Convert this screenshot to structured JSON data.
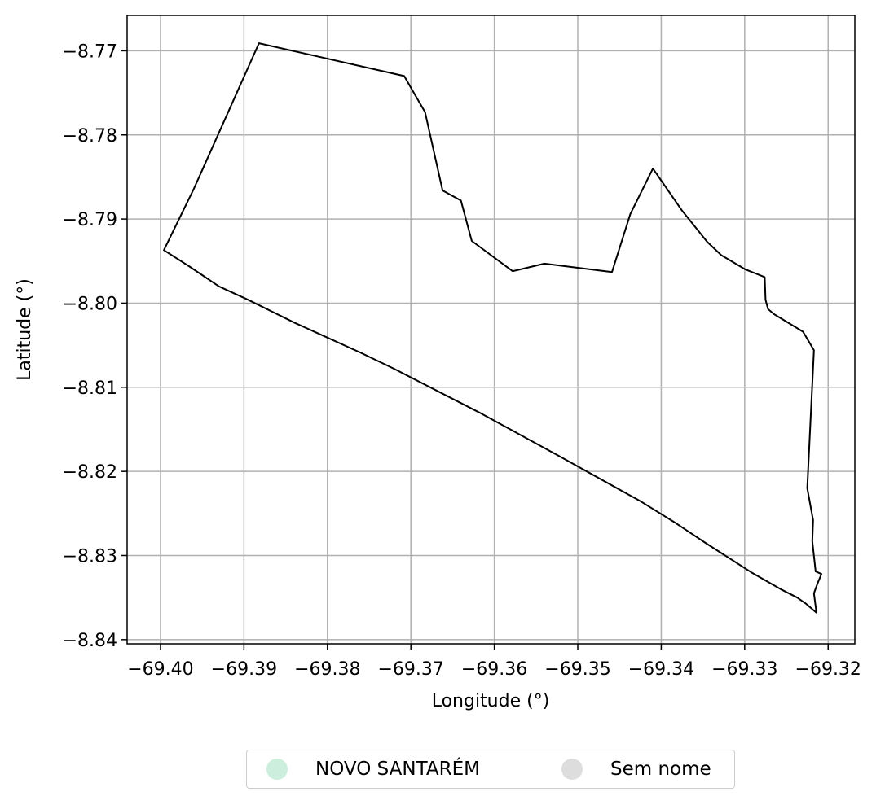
{
  "chart_data": {
    "type": "map",
    "xlabel": "Longitude (°)",
    "ylabel": "Latitude (°)",
    "xlim": [
      -69.404,
      -69.3168
    ],
    "ylim": [
      -8.8405,
      -8.7658
    ],
    "grid": true,
    "x_ticks": [
      {
        "value": -69.4,
        "label": "−69.40"
      },
      {
        "value": -69.39,
        "label": "−69.39"
      },
      {
        "value": -69.38,
        "label": "−69.38"
      },
      {
        "value": -69.37,
        "label": "−69.37"
      },
      {
        "value": -69.36,
        "label": "−69.36"
      },
      {
        "value": -69.35,
        "label": "−69.35"
      },
      {
        "value": -69.34,
        "label": "−69.34"
      },
      {
        "value": -69.33,
        "label": "−69.33"
      },
      {
        "value": -69.32,
        "label": "−69.32"
      }
    ],
    "y_ticks": [
      {
        "value": -8.77,
        "label": "−8.77"
      },
      {
        "value": -8.78,
        "label": "−8.78"
      },
      {
        "value": -8.79,
        "label": "−8.79"
      },
      {
        "value": -8.8,
        "label": "−8.80"
      },
      {
        "value": -8.81,
        "label": "−8.81"
      },
      {
        "value": -8.82,
        "label": "−8.82"
      },
      {
        "value": -8.83,
        "label": "−8.83"
      },
      {
        "value": -8.84,
        "label": "−8.84"
      }
    ],
    "boundary": {
      "stroke": "#000000",
      "points": [
        [
          -69.3996,
          -8.7937
        ],
        [
          -69.396,
          -8.7864
        ],
        [
          -69.3882,
          -8.7691
        ],
        [
          -69.3708,
          -8.773
        ],
        [
          -69.3683,
          -8.7773
        ],
        [
          -69.3662,
          -8.7866
        ],
        [
          -69.364,
          -8.7878
        ],
        [
          -69.3627,
          -8.7926
        ],
        [
          -69.3578,
          -8.7962
        ],
        [
          -69.354,
          -8.7953
        ],
        [
          -69.3459,
          -8.7963
        ],
        [
          -69.3437,
          -8.7894
        ],
        [
          -69.341,
          -8.784
        ],
        [
          -69.3375,
          -8.789
        ],
        [
          -69.3345,
          -8.7927
        ],
        [
          -69.3328,
          -8.7943
        ],
        [
          -69.3299,
          -8.796
        ],
        [
          -69.3276,
          -8.7969
        ],
        [
          -69.3275,
          -8.7996
        ],
        [
          -69.3272,
          -8.8007
        ],
        [
          -69.3265,
          -8.8013
        ],
        [
          -69.323,
          -8.8034
        ],
        [
          -69.3217,
          -8.8056
        ],
        [
          -69.3225,
          -8.822
        ],
        [
          -69.3218,
          -8.8258
        ],
        [
          -69.3219,
          -8.8283
        ],
        [
          -69.3215,
          -8.8319
        ],
        [
          -69.3208,
          -8.8322
        ],
        [
          -69.3213,
          -8.8334
        ],
        [
          -69.3217,
          -8.8345
        ],
        [
          -69.3214,
          -8.8368
        ],
        [
          -69.3227,
          -8.8357
        ],
        [
          -69.3237,
          -8.835
        ],
        [
          -69.3257,
          -8.834
        ],
        [
          -69.3292,
          -8.832
        ],
        [
          -69.3347,
          -8.8285
        ],
        [
          -69.3385,
          -8.826
        ],
        [
          -69.3424,
          -8.8236
        ],
        [
          -69.352,
          -8.8183
        ],
        [
          -69.3618,
          -8.813
        ],
        [
          -69.372,
          -8.8078
        ],
        [
          -69.376,
          -8.8059
        ],
        [
          -69.384,
          -8.8023
        ],
        [
          -69.3895,
          -8.7996
        ],
        [
          -69.393,
          -8.798
        ],
        [
          -69.3966,
          -8.7956
        ],
        [
          -69.3996,
          -8.7937
        ]
      ]
    },
    "legend": {
      "placement": "bottom-center",
      "entries": [
        {
          "label": "NOVO SANTARÉM",
          "color": "#cceedd"
        },
        {
          "label": "Sem nome",
          "color": "#dddddd"
        }
      ]
    }
  }
}
